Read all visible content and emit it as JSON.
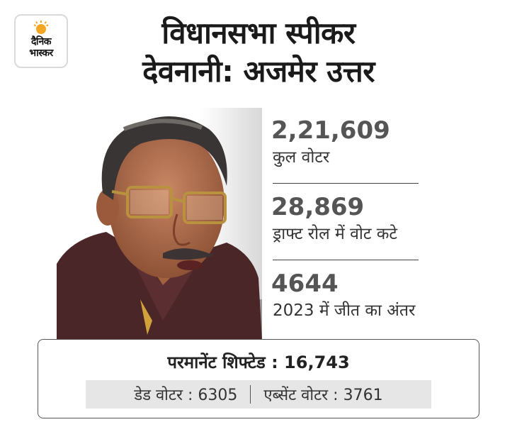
{
  "logo": {
    "line1": "दैनिक",
    "line2": "भास्कर",
    "accent_color": "#f5a623"
  },
  "title": {
    "line1": "विधानसभा स्पीकर",
    "line2": "देवनानी: अजमेर उत्तर"
  },
  "stats": [
    {
      "value": "2,21,609",
      "label": "कुल वोटर"
    },
    {
      "value": "28,869",
      "label": "ड्राफ्ट रोल में वोट कटे"
    },
    {
      "value": "4644",
      "label": "2023 में जीत का अंतर"
    }
  ],
  "summary": {
    "heading": "परमानेंट शिफ्टेड : 16,743",
    "dead_voters": "डेड वोटर : 6305",
    "absent_voters": "एब्सेंट वोटर : 3761"
  }
}
